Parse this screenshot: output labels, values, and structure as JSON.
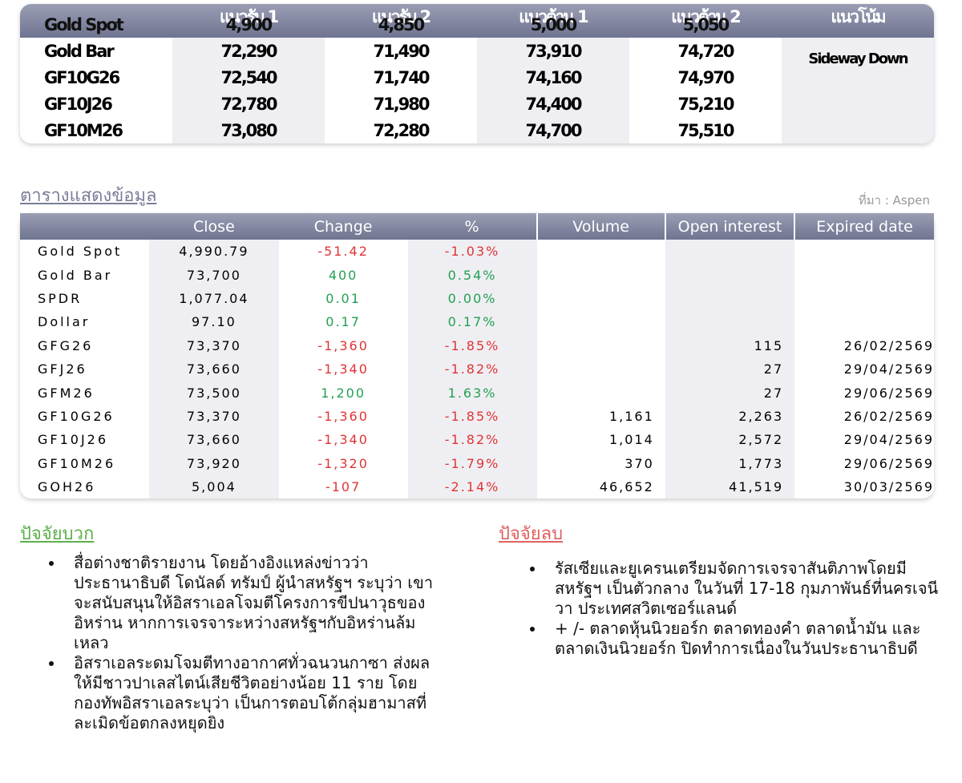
{
  "top_table": {
    "header": {
      "label": "Gold Spot",
      "columns": [
        "แนวรับ 1",
        "แนวรับ 2",
        "แนวต้าน 1",
        "แนวต้าน 2",
        "แนวโน้ม"
      ],
      "spot_values": [
        "4,900",
        "4,850",
        "5,000",
        "5,050"
      ]
    },
    "rows": [
      [
        "Gold Bar",
        "72,290",
        "71,490",
        "73,910",
        "74,720"
      ],
      [
        "GF10G26",
        "72,540",
        "71,740",
        "74,160",
        "74,970"
      ],
      [
        "GF10J26",
        "72,780",
        "71,980",
        "74,400",
        "75,210"
      ],
      [
        "GF10M26",
        "73,080",
        "72,280",
        "74,700",
        "75,510"
      ]
    ],
    "trend": "Sideway Down"
  },
  "data_table": {
    "title": "ตารางแสดงข้อมูล",
    "source": "ที่มา : Aspen",
    "columns": [
      "Close",
      "Change",
      "%",
      "Volume",
      "Open interest",
      "Expired date"
    ],
    "rows": [
      [
        "Gold Spot",
        "4,990.79",
        "-51.42",
        "-1.03%",
        null,
        null,
        null
      ],
      [
        "Gold Bar",
        "73,700",
        "400",
        "0.54%",
        null,
        null,
        null
      ],
      [
        "SPDR",
        "1,077.04",
        "0.01",
        "0.00%",
        null,
        null,
        null
      ],
      [
        "Dollar",
        "97.10",
        "0.17",
        "0.17%",
        null,
        null,
        null
      ],
      [
        "GFG26",
        "73,370",
        "-1,360",
        "-1.85%",
        null,
        "115",
        "26/02/2569"
      ],
      [
        "GFJ26",
        "73,660",
        "-1,340",
        "-1.82%",
        null,
        "27",
        "29/04/2569"
      ],
      [
        "GFM26",
        "73,500",
        "1,200",
        "1.63%",
        null,
        "27",
        "29/06/2569"
      ],
      [
        "GF10G26",
        "73,370",
        "-1,360",
        "-1.85%",
        "1,161",
        "2,263",
        "26/02/2569"
      ],
      [
        "GF10J26",
        "73,660",
        "-1,340",
        "-1.82%",
        "1,014",
        "2,572",
        "29/04/2569"
      ],
      [
        "GF10M26",
        "73,920",
        "-1,320",
        "-1.79%",
        "370",
        "1,773",
        "29/06/2569"
      ],
      [
        "GOH26",
        "5,004",
        "-107",
        "-2.14%",
        "46,652",
        "41,519",
        "30/03/2569"
      ]
    ]
  },
  "positive": {
    "title": "ปัจจัยบวก",
    "items": [
      "สื่อต่างชาติรายงาน โดยอ้างอิงแหล่งข่าวว่า ประธานาธิบดี โดนัลด์ ทรัมป์ ผู้นำสหรัฐฯ ระบุว่า เขาจะสนับสนุนให้อิสราเอลโจมตีโครงการขีปนาวุธของอิหร่าน หากการเจรจาระหว่างสหรัฐฯกับอิหร่านล้มเหลว",
      "อิสราเอลระดมโจมตีทางอากาศทั่วฉนวนกาซา ส่งผลให้มีชาวปาเลสไตน์เสียชีวิตอย่างน้อย 11 ราย โดยกองทัพอิสราเอลระบุว่า เป็นการตอบโต้กลุ่มฮามาสที่ละเมิดข้อตกลงหยุดยิง"
    ]
  },
  "negative": {
    "title": "ปัจจัยลบ",
    "items": [
      "รัสเซียและยูเครนเตรียมจัดการเจรจาสันติภาพโดยมีสหรัฐฯ เป็นตัวกลาง ในวันที่ 17-18 กุมภาพันธ์ที่นครเจนีวา ประเทศสวิตเซอร์แลนด์",
      "+ /- ตลาดหุ้นนิวยอร์ก ตลาดทองคำ ตลาดน้ำมัน และตลาดเงินนิวยอร์ก ปิดทำการเนื่องในวันประธานาธิบดี"
    ]
  }
}
